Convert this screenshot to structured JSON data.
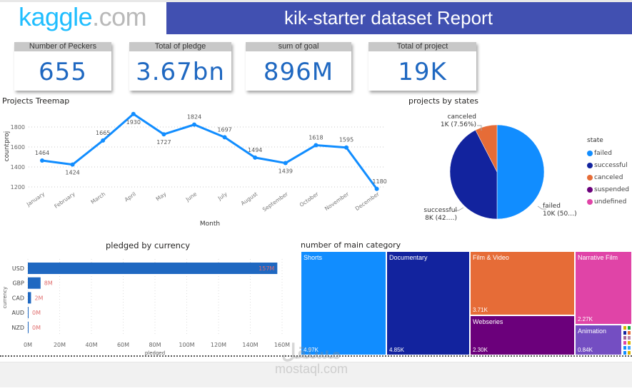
{
  "header": {
    "logo_main": "kaggle",
    "logo_suffix": ".com",
    "title": "kik-starter dataset Report"
  },
  "kpis": [
    {
      "label": "Number of Peckers",
      "value": "655"
    },
    {
      "label": "Total of pledge",
      "value": "3.67bn"
    },
    {
      "label": "sum of goal",
      "value": "896M"
    },
    {
      "label": "Total of project",
      "value": "19K"
    }
  ],
  "colors": {
    "accent": "#4150b1",
    "kpi_value": "#1f68c1",
    "line": "#118dff",
    "bar": "#1f68c1",
    "bar_label": "#e06c6c"
  },
  "watermark": {
    "arabic": "مستقل",
    "latin": "mostaql.com"
  },
  "chart_data": [
    {
      "type": "line",
      "title": "Projects Treemap",
      "xlabel": "Month",
      "ylabel": "countproj",
      "categories": [
        "January",
        "February",
        "March",
        "April",
        "May",
        "June",
        "July",
        "August",
        "September",
        "October",
        "November",
        "December"
      ],
      "values": [
        1464,
        1424,
        1665,
        1930,
        1727,
        1824,
        1697,
        1494,
        1439,
        1618,
        1595,
        1180
      ],
      "yticks": [
        1200,
        1400,
        1600,
        1800
      ],
      "ylim": [
        1160,
        1960
      ],
      "grid": true
    },
    {
      "type": "pie",
      "title": "projects by states",
      "legend_title": "state",
      "legend_position": "right",
      "slices": [
        {
          "name": "failed",
          "value": 50.0,
          "label_line1": "failed",
          "label_line2": "10K (50…)",
          "color": "#118dff"
        },
        {
          "name": "successful",
          "value": 42.44,
          "label_line1": "successful",
          "label_line2": "8K (42.…)",
          "color": "#12239e"
        },
        {
          "name": "canceled",
          "value": 7.56,
          "label_line1": "canceled",
          "label_line2": "1K (7.56%)",
          "color": "#e66c37"
        },
        {
          "name": "suspended",
          "value": 0,
          "color": "#6b007b"
        },
        {
          "name": "undefined",
          "value": 0,
          "color": "#e044a7"
        }
      ]
    },
    {
      "type": "bar",
      "orientation": "horizontal",
      "title": "pledged by currency",
      "xlabel": "pledged",
      "ylabel": "currency",
      "categories": [
        "USD",
        "GBP",
        "CAD",
        "AUD",
        "NZD"
      ],
      "values": [
        157,
        8,
        2,
        0.2,
        0.2
      ],
      "data_labels": [
        "157M",
        "8M",
        "2M",
        "0M",
        "0M"
      ],
      "xticks": [
        "0M",
        "20M",
        "40M",
        "60M",
        "80M",
        "100M",
        "120M",
        "140M",
        "160M"
      ],
      "xlim": [
        0,
        160
      ],
      "grid": true
    },
    {
      "type": "treemap",
      "title": "number of main category",
      "items": [
        {
          "name": "Shorts",
          "value": 4.97,
          "label": "4.97K",
          "color": "#118dff"
        },
        {
          "name": "Documentary",
          "value": 4.85,
          "label": "4.85K",
          "color": "#12239e"
        },
        {
          "name": "Film & Video",
          "value": 3.71,
          "label": "3.71K",
          "color": "#e66c37"
        },
        {
          "name": "Webseries",
          "value": 2.3,
          "label": "2.30K",
          "color": "#6b007b"
        },
        {
          "name": "Narrative Film",
          "value": 2.27,
          "label": "2.27K",
          "color": "#e044a7"
        },
        {
          "name": "Animation",
          "value": 0.84,
          "label": "0.84K",
          "color": "#744ec2"
        }
      ]
    }
  ]
}
